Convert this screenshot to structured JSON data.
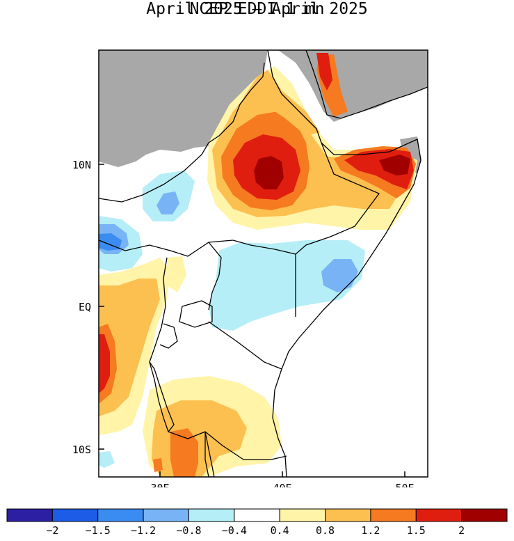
{
  "title": {
    "line1": "NCEP EDDI 1 mn",
    "line2": "April 2025 – April 2025"
  },
  "map": {
    "lat_labels": [
      "10N",
      "EQ",
      "10S"
    ],
    "lon_labels": [
      "30E",
      "40E",
      "50E"
    ],
    "colors": {
      "land_mask_gray": "#a8a8a8",
      "neutral": "#ffffff"
    }
  },
  "colorbar": {
    "tick_labels": [
      "−2",
      "−1.5",
      "−1.2",
      "−0.8",
      "−0.4",
      "0.4",
      "0.8",
      "1.2",
      "1.5",
      "2"
    ],
    "bins": [
      {
        "color": "#2c1fa3"
      },
      {
        "color": "#1c5ce6"
      },
      {
        "color": "#3b8cf0"
      },
      {
        "color": "#78b4f5"
      },
      {
        "color": "#b5eef6"
      },
      {
        "color": "#ffffff"
      },
      {
        "color": "#fff4a8"
      },
      {
        "color": "#fcc050"
      },
      {
        "color": "#f57a20"
      },
      {
        "color": "#e01e10"
      },
      {
        "color": "#a00000"
      }
    ]
  }
}
